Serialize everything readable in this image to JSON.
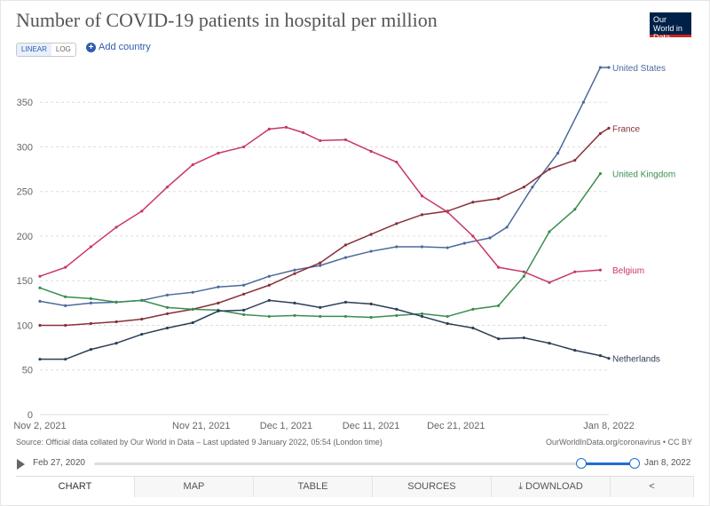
{
  "header": {
    "title": "Number of COVID-19 patients in hospital per million",
    "logo_text": "Our World in Data"
  },
  "controls": {
    "linear": "LINEAR",
    "log": "LOG",
    "add_country": "Add country"
  },
  "chart_data": {
    "type": "line",
    "title": "Number of COVID-19 patients in hospital per million",
    "ylim": [
      0,
      390
    ],
    "yticks": [
      0,
      50,
      100,
      150,
      200,
      250,
      300,
      350
    ],
    "xticks": [
      {
        "label": "Nov 2, 2021",
        "day": 0
      },
      {
        "label": "Nov 21, 2021",
        "day": 19
      },
      {
        "label": "Dec 1, 2021",
        "day": 29
      },
      {
        "label": "Dec 11, 2021",
        "day": 39
      },
      {
        "label": "Dec 21, 2021",
        "day": 49
      },
      {
        "label": "Jan 8, 2022",
        "day": 67
      }
    ],
    "grid": true,
    "series": [
      {
        "name": "United States",
        "color": "#4c6a9c",
        "days": [
          0,
          3,
          6,
          9,
          12,
          15,
          18,
          21,
          24,
          27,
          30,
          33,
          36,
          39,
          42,
          45,
          48,
          50,
          53,
          55,
          58,
          61,
          64,
          66,
          67
        ],
        "values": [
          127,
          122,
          125,
          126,
          128,
          134,
          137,
          143,
          145,
          155,
          162,
          167,
          176,
          183,
          188,
          188,
          187,
          192,
          198,
          210,
          255,
          293,
          350,
          389,
          389
        ]
      },
      {
        "name": "France",
        "color": "#883039",
        "days": [
          0,
          3,
          6,
          9,
          12,
          15,
          18,
          21,
          24,
          27,
          30,
          33,
          36,
          39,
          42,
          45,
          48,
          51,
          54,
          57,
          60,
          63,
          66,
          67
        ],
        "values": [
          100,
          100,
          102,
          104,
          107,
          113,
          118,
          125,
          135,
          145,
          158,
          170,
          190,
          202,
          214,
          224,
          228,
          238,
          242,
          255,
          275,
          285,
          315,
          321
        ]
      },
      {
        "name": "United Kingdom",
        "color": "#3a8e4f",
        "days": [
          0,
          3,
          6,
          9,
          12,
          15,
          18,
          21,
          24,
          27,
          30,
          33,
          36,
          39,
          42,
          45,
          48,
          51,
          54,
          57,
          60,
          63,
          66
        ],
        "values": [
          142,
          132,
          130,
          126,
          128,
          120,
          118,
          117,
          112,
          110,
          111,
          110,
          110,
          109,
          111,
          113,
          110,
          118,
          122,
          155,
          205,
          230,
          270
        ]
      },
      {
        "name": "Belgium",
        "color": "#c93668",
        "days": [
          0,
          3,
          6,
          9,
          12,
          15,
          18,
          21,
          24,
          27,
          29,
          31,
          33,
          36,
          39,
          42,
          45,
          48,
          51,
          54,
          57,
          60,
          63,
          66
        ],
        "values": [
          155,
          165,
          188,
          210,
          228,
          255,
          280,
          293,
          300,
          320,
          322,
          316,
          307,
          308,
          295,
          283,
          245,
          227,
          200,
          165,
          160,
          148,
          160,
          162
        ]
      },
      {
        "name": "Netherlands",
        "color": "#2c3e56",
        "days": [
          0,
          3,
          6,
          9,
          12,
          15,
          18,
          21,
          24,
          27,
          30,
          33,
          36,
          39,
          42,
          45,
          48,
          51,
          54,
          57,
          60,
          63,
          66,
          67
        ],
        "values": [
          62,
          62,
          73,
          80,
          90,
          97,
          103,
          116,
          117,
          128,
          125,
          120,
          126,
          124,
          118,
          110,
          102,
          97,
          85,
          86,
          80,
          72,
          66,
          63
        ]
      }
    ]
  },
  "footer": {
    "source": "Source: Official data collated by Our World in Data – Last updated 9 January 2022, 05:54 (London time)",
    "credit": "OurWorldInData.org/coronavirus • CC BY"
  },
  "timeline": {
    "start": "Feb 27, 2020",
    "end": "Jan 8, 2022"
  },
  "tabs": [
    "CHART",
    "MAP",
    "TABLE",
    "SOURCES",
    "DOWNLOAD"
  ]
}
